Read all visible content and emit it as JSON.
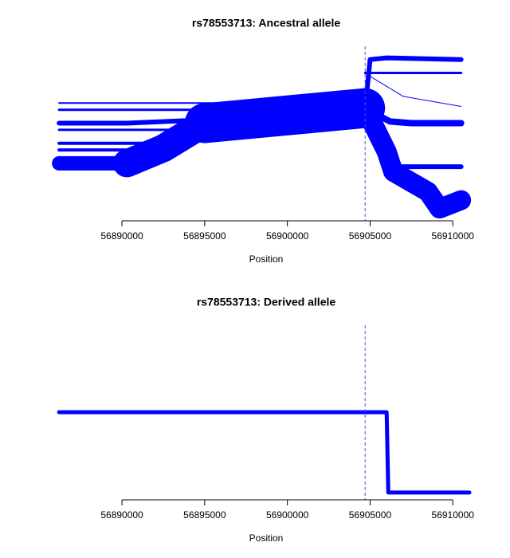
{
  "chart_data": [
    {
      "type": "bifurcation",
      "title": "rs78553713: Ancestral allele",
      "xlabel": "Position",
      "xlim": [
        56886000,
        56911000
      ],
      "xticks": [
        56890000,
        56895000,
        56900000,
        56905000,
        56910000
      ],
      "ylim": [
        0,
        1
      ],
      "core_position": 56904700,
      "core_color": "#5050d0",
      "color": "#0000ff",
      "branches": [
        {
          "x": [
            56904700,
            56895000
          ],
          "y": [
            0.64,
            0.55
          ],
          "width": 50
        },
        {
          "x": [
            56895000,
            56892500,
            56890300
          ],
          "y": [
            0.55,
            0.4,
            0.31
          ],
          "width": 35
        },
        {
          "x": [
            56890300,
            56886200
          ],
          "y": [
            0.31,
            0.31
          ],
          "width": 18
        },
        {
          "x": [
            56886200,
            56898000
          ],
          "y": [
            0.67,
            0.67
          ],
          "width": 2
        },
        {
          "x": [
            56886200,
            56897000
          ],
          "y": [
            0.63,
            0.63
          ],
          "width": 3
        },
        {
          "x": [
            56886200,
            56890300,
            56895000
          ],
          "y": [
            0.55,
            0.55,
            0.57
          ],
          "width": 6
        },
        {
          "x": [
            56886200,
            56896000
          ],
          "y": [
            0.51,
            0.51
          ],
          "width": 3
        },
        {
          "x": [
            56886200,
            56893000
          ],
          "y": [
            0.43,
            0.43
          ],
          "width": 4
        },
        {
          "x": [
            56886200,
            56892000
          ],
          "y": [
            0.39,
            0.39
          ],
          "width": 4
        },
        {
          "x": [
            56904700,
            56905000,
            56906000,
            56910500
          ],
          "y": [
            0.64,
            0.93,
            0.94,
            0.93
          ],
          "width": 6
        },
        {
          "x": [
            56904700,
            56906200,
            56907500,
            56910500
          ],
          "y": [
            0.64,
            0.56,
            0.55,
            0.55
          ],
          "width": 8
        },
        {
          "x": [
            56904700,
            56906000,
            56906400,
            56908500,
            56909200,
            56910500
          ],
          "y": [
            0.64,
            0.38,
            0.26,
            0.14,
            0.04,
            0.09
          ],
          "width": 25
        },
        {
          "x": [
            56906000,
            56907500,
            56910500
          ],
          "y": [
            0.29,
            0.29,
            0.29
          ],
          "width": 6
        },
        {
          "x": [
            56905000,
            56907000,
            56910500
          ],
          "y": [
            0.83,
            0.71,
            0.65
          ],
          "width": 1
        },
        {
          "x": [
            56904700,
            56905500,
            56910500
          ],
          "y": [
            0.85,
            0.85,
            0.85
          ],
          "width": 3
        }
      ]
    },
    {
      "type": "bifurcation",
      "title": "rs78553713: Derived allele",
      "xlabel": "Position",
      "xlim": [
        56886000,
        56911000
      ],
      "xticks": [
        56890000,
        56895000,
        56900000,
        56905000,
        56910000
      ],
      "ylim": [
        0,
        1
      ],
      "core_position": 56904700,
      "core_color": "#5050d0",
      "color": "#0000ff",
      "branches": [
        {
          "x": [
            56886200,
            56906000,
            56906100,
            56911000
          ],
          "y": [
            0.49,
            0.49,
            0.01,
            0.01
          ],
          "width": 5
        }
      ]
    }
  ]
}
